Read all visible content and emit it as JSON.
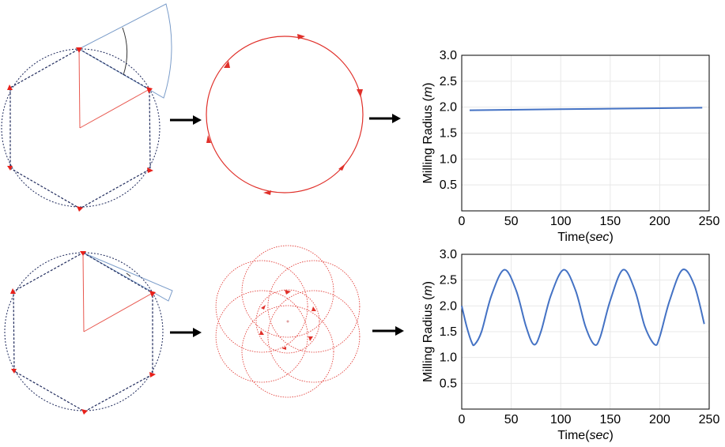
{
  "colors": {
    "hexagon": "#1f2a5c",
    "circle": "#1f2a5c",
    "vertex_marker": "#e8201a",
    "radius_line": "#e8574e",
    "sector": "#7a9cc9",
    "path": "#e0302a",
    "series_line": "#4472c4",
    "grid": "#e8e8e8",
    "arrow": "#000000"
  },
  "icons": {
    "flow_arrow": "right-arrow-icon"
  },
  "chart_data": [
    {
      "type": "line",
      "title": "",
      "xlabel_prefix": "Time(",
      "xlabel_unit": "sec",
      "xlabel_suffix": ")",
      "ylabel_prefix": "Milling Radius (",
      "ylabel_unit": "m",
      "ylabel_suffix": ")",
      "xlim": [
        0,
        250
      ],
      "ylim": [
        0,
        3.0
      ],
      "xticks": [
        "0",
        "50",
        "100",
        "150",
        "200",
        "250"
      ],
      "yticks": [
        "0.5",
        "1.0",
        "1.5",
        "2.0",
        "2.5",
        "3.0"
      ],
      "grid": true,
      "series": [
        {
          "x": [
            8,
            50,
            100,
            150,
            200,
            243
          ],
          "y": [
            1.94,
            1.95,
            1.96,
            1.97,
            1.98,
            1.99
          ]
        }
      ]
    },
    {
      "type": "line",
      "title": "",
      "xlabel_prefix": "Time(",
      "xlabel_unit": "sec",
      "xlabel_suffix": ")",
      "ylabel_prefix": "Milling Radius (",
      "ylabel_unit": "m",
      "ylabel_suffix": ")",
      "xlim": [
        0,
        250
      ],
      "ylim": [
        0,
        3.0
      ],
      "xticks": [
        "0",
        "50",
        "100",
        "150",
        "200",
        "250"
      ],
      "yticks": [
        "0.5",
        "1.0",
        "1.5",
        "2.0",
        "2.5",
        "3.0"
      ],
      "grid": true,
      "series": [
        {
          "x": [
            0,
            5,
            10,
            13,
            20,
            30,
            43,
            55,
            65,
            73,
            80,
            90,
            103,
            115,
            125,
            134,
            140,
            150,
            163,
            175,
            185,
            195,
            200,
            210,
            223,
            235,
            245
          ],
          "y": [
            2.0,
            1.6,
            1.3,
            1.25,
            1.5,
            2.2,
            2.7,
            2.3,
            1.6,
            1.25,
            1.5,
            2.2,
            2.7,
            2.3,
            1.6,
            1.25,
            1.4,
            2.1,
            2.7,
            2.3,
            1.6,
            1.25,
            1.4,
            2.1,
            2.7,
            2.4,
            1.65
          ]
        }
      ]
    }
  ]
}
